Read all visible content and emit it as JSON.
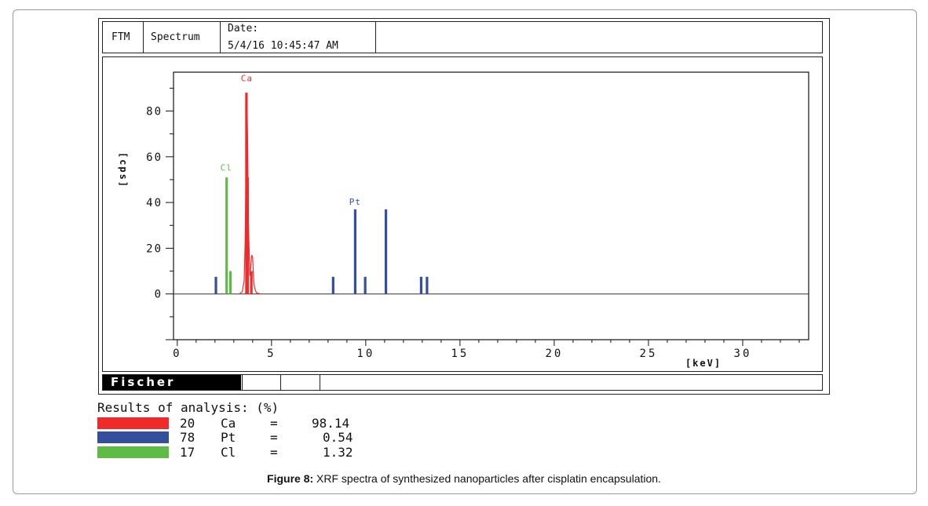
{
  "header": {
    "cell1": "FTM",
    "cell2": "Spectrum",
    "date_label": "Date:",
    "date_value": "5/4/16 10:45:47 AM"
  },
  "logo_text": "Fischer",
  "results": {
    "title": "Results of analysis: (%)",
    "rows": [
      {
        "z": "20",
        "element": "Ca",
        "eq": "=",
        "value": "98.14",
        "color": "#ee2a2a"
      },
      {
        "z": "78",
        "element": "Pt",
        "eq": "=",
        "value": "0.54",
        "color": "#344f9c"
      },
      {
        "z": "17",
        "element": "Cl",
        "eq": "=",
        "value": "1.32",
        "color": "#5dbb46"
      }
    ]
  },
  "caption": {
    "label": "Figure 8:",
    "text": " XRF spectra of synthesized nanoparticles after cisplatin encapsulation."
  },
  "chart_data": {
    "type": "line",
    "title": "",
    "xlabel": "[keV]",
    "ylabel": "[cps]",
    "xlim": [
      -0.2,
      33.5
    ],
    "ylim": [
      -20,
      97
    ],
    "x_ticks": [
      0,
      5,
      10,
      15,
      20,
      25,
      30
    ],
    "y_ticks": [
      0,
      20,
      40,
      60,
      80
    ],
    "colors": {
      "Ca": "#ee2a2a",
      "Pt": "#344f9c",
      "Cl": "#5dbb46"
    },
    "peak_labels": [
      {
        "text": "Ca",
        "x": 3.69,
        "y": 93,
        "color": "#ee2a2a"
      },
      {
        "text": "Cl",
        "x": 2.6,
        "y": 54,
        "color": "#5dbb46"
      },
      {
        "text": "Pt",
        "x": 9.44,
        "y": 39,
        "color": "#344f9c"
      }
    ],
    "series": [
      {
        "name": "Ca",
        "style": "line",
        "x": [
          3.3,
          3.45,
          3.55,
          3.6,
          3.65,
          3.69,
          3.73,
          3.78,
          3.85,
          3.9,
          3.95,
          4.0,
          4.03,
          4.06,
          4.1,
          4.15,
          4.2,
          4.3,
          4.45
        ],
        "y": [
          0,
          1,
          6,
          22,
          55,
          88,
          70,
          30,
          8,
          12,
          17,
          16,
          10,
          5,
          3,
          1.5,
          0.5,
          0.2,
          0
        ]
      },
      {
        "name": "Ca",
        "style": "bars",
        "x": [
          3.67,
          3.73,
          3.93
        ],
        "y": [
          88,
          51,
          10
        ]
      },
      {
        "name": "Cl",
        "style": "bars",
        "x": [
          2.62,
          2.82
        ],
        "y": [
          51,
          10
        ]
      },
      {
        "name": "Pt",
        "style": "bars",
        "x": [
          2.05,
          8.27,
          9.44,
          9.97,
          11.07,
          12.94,
          13.25
        ],
        "y": [
          7.5,
          7.5,
          37,
          7.5,
          37,
          7.5,
          7.5
        ]
      }
    ]
  }
}
